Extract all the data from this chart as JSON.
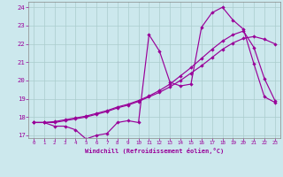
{
  "xlabel": "Windchill (Refroidissement éolien,°C)",
  "background_color": "#cce8ed",
  "line_color": "#990099",
  "grid_color": "#aacccc",
  "xmin": 0,
  "xmax": 23,
  "ymin": 17,
  "ymax": 24,
  "series1_x": [
    0,
    1,
    2,
    3,
    4,
    5,
    6,
    7,
    8,
    9,
    10,
    11,
    12,
    13,
    14,
    15,
    16,
    17,
    18,
    19,
    20,
    21,
    22,
    23
  ],
  "series1_y": [
    17.7,
    17.7,
    17.5,
    17.5,
    17.3,
    16.8,
    17.0,
    17.1,
    17.7,
    17.8,
    17.7,
    22.5,
    21.6,
    19.9,
    19.7,
    19.8,
    22.9,
    23.7,
    24.0,
    23.3,
    22.8,
    20.9,
    19.1,
    18.8
  ],
  "series2_x": [
    0,
    1,
    2,
    3,
    4,
    5,
    6,
    7,
    8,
    9,
    10,
    11,
    12,
    13,
    14,
    15,
    16,
    17,
    18,
    19,
    20,
    21,
    22,
    23
  ],
  "series2_y": [
    17.7,
    17.7,
    17.7,
    17.8,
    17.9,
    18.0,
    18.15,
    18.3,
    18.5,
    18.65,
    18.85,
    19.1,
    19.35,
    19.65,
    20.0,
    20.4,
    20.8,
    21.25,
    21.7,
    22.05,
    22.3,
    22.4,
    22.25,
    22.0
  ],
  "series3_x": [
    0,
    1,
    2,
    3,
    4,
    5,
    6,
    7,
    8,
    9,
    10,
    11,
    12,
    13,
    14,
    15,
    16,
    17,
    18,
    19,
    20,
    21,
    22,
    23
  ],
  "series3_y": [
    17.7,
    17.7,
    17.75,
    17.85,
    17.95,
    18.05,
    18.2,
    18.35,
    18.55,
    18.7,
    18.9,
    19.15,
    19.45,
    19.8,
    20.25,
    20.7,
    21.2,
    21.7,
    22.15,
    22.5,
    22.7,
    21.8,
    20.1,
    18.9
  ],
  "ytick_labels": [
    "17",
    "18",
    "19",
    "20",
    "21",
    "22",
    "23",
    "24"
  ],
  "xtick_labels": [
    "0",
    "1",
    "2",
    "3",
    "4",
    "5",
    "6",
    "7",
    "8",
    "9",
    "10",
    "11",
    "12",
    "13",
    "14",
    "15",
    "16",
    "17",
    "18",
    "19",
    "20",
    "21",
    "22",
    "23"
  ]
}
